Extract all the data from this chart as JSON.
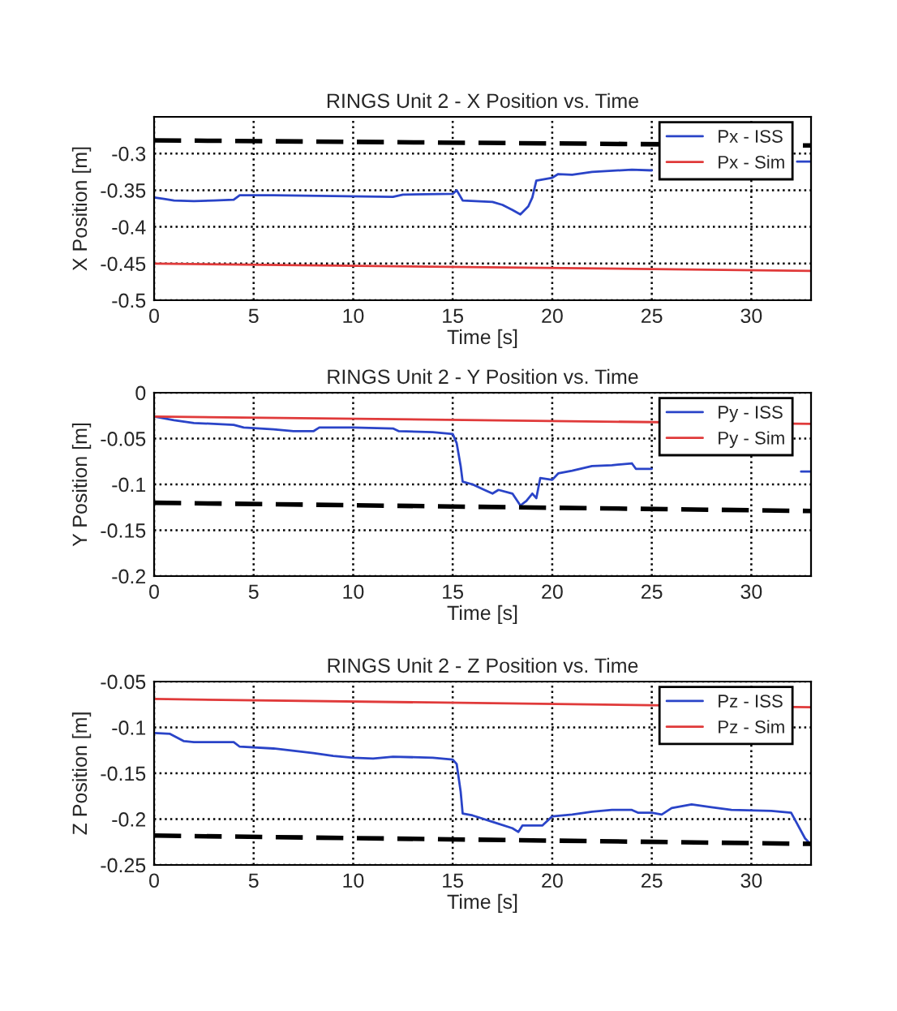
{
  "chart_data": [
    {
      "type": "line",
      "title": "RINGS Unit 2 - X Position vs. Time",
      "xlabel": "Time [s]",
      "ylabel": "X Position [m]",
      "xlim": [
        0,
        33
      ],
      "xticks": [
        0,
        5,
        10,
        15,
        20,
        25,
        30
      ],
      "ylim": [
        -0.5,
        -0.25
      ],
      "yticks": [
        -0.5,
        -0.45,
        -0.4,
        -0.35,
        -0.3
      ],
      "grid": true,
      "legend": "top right",
      "series": [
        {
          "name": "Px - ISS",
          "color": "#2a44c8",
          "line_style": "solid",
          "x": [
            0,
            0.5,
            1,
            2,
            3,
            4,
            4.3,
            6,
            9,
            12,
            12.5,
            15,
            15.2,
            15.5,
            17,
            17.5,
            18,
            18.4,
            18.8,
            19,
            19.2,
            20,
            20.3,
            21,
            22,
            24,
            25,
            29,
            32.3,
            33
          ],
          "values": [
            -0.36,
            -0.362,
            -0.364,
            -0.365,
            -0.364,
            -0.363,
            -0.357,
            -0.357,
            -0.358,
            -0.359,
            -0.356,
            -0.355,
            -0.35,
            -0.364,
            -0.366,
            -0.37,
            -0.377,
            -0.383,
            -0.372,
            -0.36,
            -0.337,
            -0.333,
            -0.328,
            -0.329,
            -0.325,
            -0.322,
            -0.323,
            null,
            -0.311,
            -0.311
          ]
        },
        {
          "name": "Px - Sim",
          "color": "#e03a3a",
          "line_style": "solid",
          "x": [
            0,
            33
          ],
          "values": [
            -0.45,
            -0.46
          ]
        },
        {
          "color": "#000000",
          "line_style": "dashed",
          "x": [
            0,
            33
          ],
          "values": [
            -0.282,
            -0.289
          ]
        }
      ]
    },
    {
      "type": "line",
      "title": "RINGS Unit 2 - Y Position vs. Time",
      "xlabel": "Time [s]",
      "ylabel": "Y Position [m]",
      "xlim": [
        0,
        33
      ],
      "xticks": [
        0,
        5,
        10,
        15,
        20,
        25,
        30
      ],
      "ylim": [
        -0.2,
        0
      ],
      "yticks": [
        -0.2,
        -0.15,
        -0.1,
        -0.05,
        0
      ],
      "grid": true,
      "legend": "top right",
      "series": [
        {
          "name": "Py - ISS",
          "color": "#2a44c8",
          "line_style": "solid",
          "x": [
            0,
            1,
            2,
            4,
            4.5,
            6,
            7,
            8,
            8.3,
            10,
            12,
            12.3,
            14,
            15,
            15.2,
            15.4,
            15.5,
            16,
            16.5,
            17,
            17.3,
            18,
            18.4,
            18.7,
            19,
            19.2,
            19.4,
            20,
            20.3,
            21,
            22,
            23,
            24,
            24.2,
            25,
            29,
            32.5,
            33
          ],
          "values": [
            -0.026,
            -0.03,
            -0.033,
            -0.035,
            -0.038,
            -0.04,
            -0.042,
            -0.042,
            -0.038,
            -0.038,
            -0.039,
            -0.042,
            -0.043,
            -0.045,
            -0.055,
            -0.08,
            -0.097,
            -0.1,
            -0.105,
            -0.11,
            -0.106,
            -0.11,
            -0.123,
            -0.118,
            -0.11,
            -0.115,
            -0.093,
            -0.095,
            -0.088,
            -0.085,
            -0.08,
            -0.079,
            -0.077,
            -0.083,
            -0.083,
            null,
            -0.086,
            -0.086
          ]
        },
        {
          "name": "Py - Sim",
          "color": "#e03a3a",
          "line_style": "solid",
          "x": [
            0,
            33
          ],
          "values": [
            -0.026,
            -0.034
          ]
        },
        {
          "color": "#000000",
          "line_style": "dashed",
          "x": [
            0,
            33
          ],
          "values": [
            -0.12,
            -0.129
          ]
        }
      ]
    },
    {
      "type": "line",
      "title": "RINGS Unit 2 - Z Position vs. Time",
      "xlabel": "Time [s]",
      "ylabel": "Z Position [m]",
      "xlim": [
        0,
        33
      ],
      "xticks": [
        0,
        5,
        10,
        15,
        20,
        25,
        30
      ],
      "ylim": [
        -0.25,
        -0.05
      ],
      "yticks": [
        -0.25,
        -0.2,
        -0.15,
        -0.1,
        -0.05
      ],
      "grid": true,
      "legend": "top right",
      "series": [
        {
          "name": "Pz - ISS",
          "color": "#2a44c8",
          "line_style": "solid",
          "x": [
            0,
            0.8,
            1.5,
            2,
            4,
            4.3,
            6,
            8,
            9,
            10,
            11,
            12,
            14,
            15,
            15.2,
            15.4,
            15.5,
            16,
            17,
            18,
            18.3,
            18.5,
            19.5,
            20,
            21,
            22,
            23,
            24,
            24.3,
            25,
            25.5,
            26,
            27,
            28,
            29,
            31,
            32,
            32.3,
            32.7,
            33
          ],
          "values": [
            -0.106,
            -0.107,
            -0.115,
            -0.116,
            -0.116,
            -0.121,
            -0.123,
            -0.128,
            -0.131,
            -0.133,
            -0.134,
            -0.132,
            -0.133,
            -0.135,
            -0.14,
            -0.17,
            -0.194,
            -0.196,
            -0.203,
            -0.21,
            -0.214,
            -0.207,
            -0.207,
            -0.197,
            -0.195,
            -0.192,
            -0.19,
            -0.19,
            -0.193,
            -0.193,
            -0.195,
            -0.188,
            -0.184,
            -0.187,
            -0.19,
            -0.191,
            -0.193,
            -0.205,
            -0.221,
            -0.228
          ]
        },
        {
          "name": "Pz - Sim",
          "color": "#e03a3a",
          "line_style": "solid",
          "x": [
            0,
            33
          ],
          "values": [
            -0.069,
            -0.078
          ]
        },
        {
          "color": "#000000",
          "line_style": "dashed",
          "x": [
            0,
            33
          ],
          "values": [
            -0.218,
            -0.227
          ]
        }
      ]
    }
  ]
}
